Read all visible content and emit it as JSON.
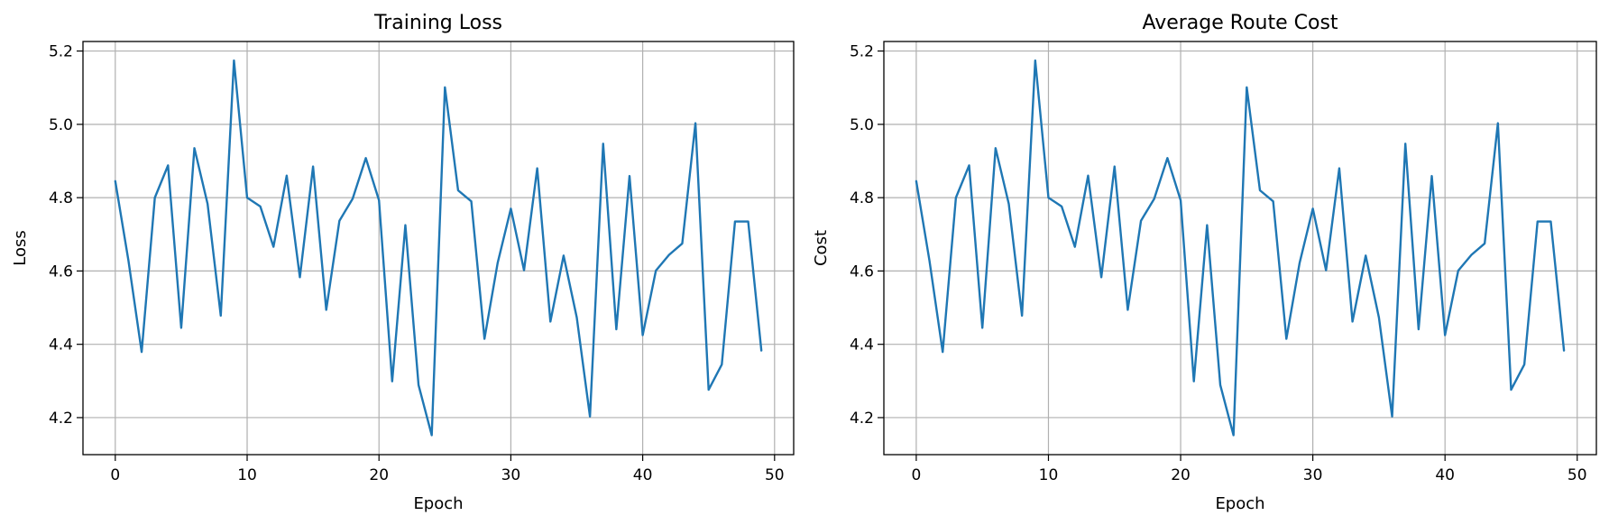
{
  "colors": {
    "series": "#1f77b4",
    "grid": "#b0b0b0"
  },
  "chart_data": [
    {
      "type": "line",
      "title": "Training Loss",
      "xlabel": "Epoch",
      "ylabel": "Loss",
      "xlim": [
        -2.45,
        51.45
      ],
      "ylim": [
        4.099,
        5.226
      ],
      "xticks": [
        0,
        10,
        20,
        30,
        40,
        50
      ],
      "yticks": [
        4.2,
        4.4,
        4.6,
        4.8,
        5.0,
        5.2
      ],
      "grid": true,
      "series": [
        {
          "x": [
            0,
            1,
            2,
            3,
            4,
            5,
            6,
            7,
            8,
            9,
            10,
            11,
            12,
            13,
            14,
            15,
            16,
            17,
            18,
            19,
            20,
            21,
            22,
            23,
            24,
            25,
            26,
            27,
            28,
            29,
            30,
            31,
            32,
            33,
            34,
            35,
            36,
            37,
            38,
            39,
            40,
            41,
            42,
            43,
            44,
            45,
            46,
            47,
            48,
            49
          ],
          "values": [
            4.845,
            4.628,
            4.379,
            4.8,
            4.888,
            4.445,
            4.935,
            4.783,
            4.478,
            5.174,
            4.8,
            4.776,
            4.666,
            4.86,
            4.583,
            4.885,
            4.494,
            4.737,
            4.797,
            4.908,
            4.793,
            4.299,
            4.725,
            4.289,
            4.152,
            5.101,
            4.82,
            4.79,
            4.415,
            4.622,
            4.77,
            4.602,
            4.88,
            4.462,
            4.642,
            4.473,
            4.203,
            4.947,
            4.441,
            4.859,
            4.425,
            4.601,
            4.644,
            4.675,
            5.003,
            4.276,
            4.345,
            4.735,
            4.735,
            4.383
          ]
        }
      ]
    },
    {
      "type": "line",
      "title": "Average Route Cost",
      "xlabel": "Epoch",
      "ylabel": "Cost",
      "xlim": [
        -2.45,
        51.45
      ],
      "ylim": [
        4.099,
        5.226
      ],
      "xticks": [
        0,
        10,
        20,
        30,
        40,
        50
      ],
      "yticks": [
        4.2,
        4.4,
        4.6,
        4.8,
        5.0,
        5.2
      ],
      "grid": true,
      "series": [
        {
          "x": [
            0,
            1,
            2,
            3,
            4,
            5,
            6,
            7,
            8,
            9,
            10,
            11,
            12,
            13,
            14,
            15,
            16,
            17,
            18,
            19,
            20,
            21,
            22,
            23,
            24,
            25,
            26,
            27,
            28,
            29,
            30,
            31,
            32,
            33,
            34,
            35,
            36,
            37,
            38,
            39,
            40,
            41,
            42,
            43,
            44,
            45,
            46,
            47,
            48,
            49
          ],
          "values": [
            4.845,
            4.628,
            4.379,
            4.8,
            4.888,
            4.445,
            4.935,
            4.783,
            4.478,
            5.174,
            4.8,
            4.776,
            4.666,
            4.86,
            4.583,
            4.885,
            4.494,
            4.737,
            4.797,
            4.908,
            4.793,
            4.299,
            4.725,
            4.289,
            4.152,
            5.101,
            4.82,
            4.79,
            4.415,
            4.622,
            4.77,
            4.602,
            4.88,
            4.462,
            4.642,
            4.473,
            4.203,
            4.947,
            4.441,
            4.859,
            4.425,
            4.601,
            4.644,
            4.675,
            5.003,
            4.276,
            4.345,
            4.735,
            4.735,
            4.383
          ]
        }
      ]
    }
  ]
}
